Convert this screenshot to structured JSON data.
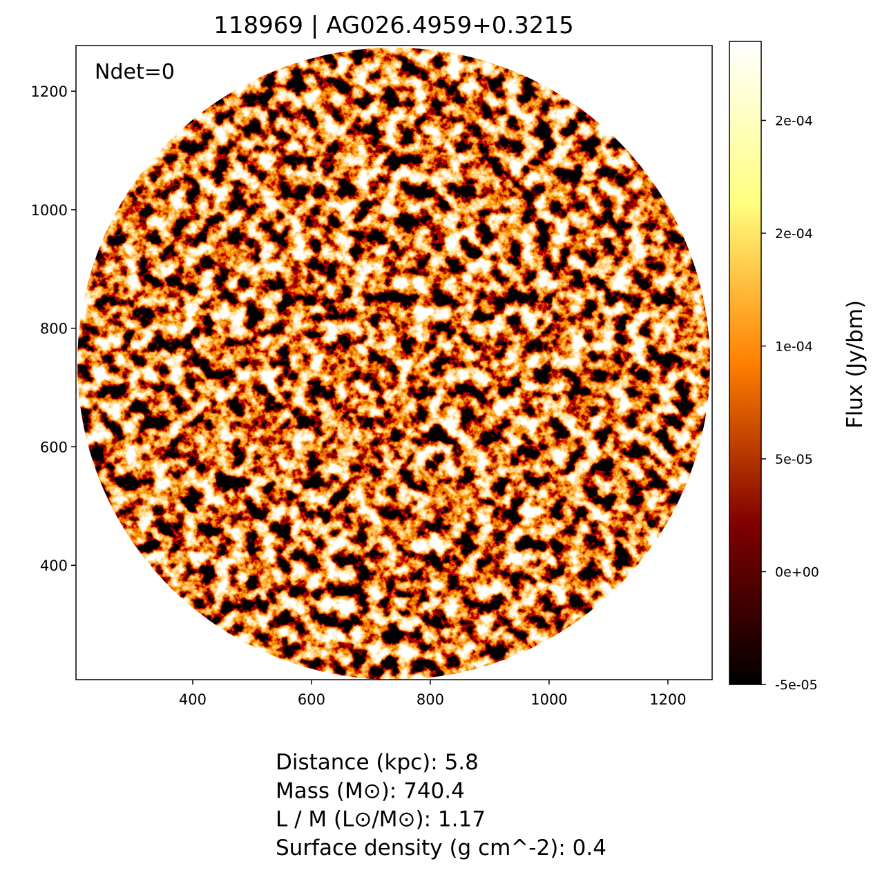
{
  "chart_data": {
    "type": "image",
    "title": "118969 | AG026.4959+0.3215",
    "annotation": "Ndet=0",
    "xlim": [
      203.5,
      1274.5
    ],
    "xticks": [
      400,
      600,
      800,
      1000,
      1200
    ],
    "ylim": [
      207,
      1277
    ],
    "yticks": [
      400,
      600,
      800,
      1000,
      1200
    ],
    "colorbar": {
      "label": "Flux (Jy/bm)",
      "clim": [
        -5e-05,
        0.000235
      ],
      "colors": [
        "#000000",
        "#800000",
        "#ff8000",
        "#ffff80",
        "#ffffff"
      ],
      "ticks": [
        {
          "value": -5e-05,
          "label": "-5e-05"
        },
        {
          "value": 0,
          "label": "0e+00"
        },
        {
          "value": 5e-05,
          "label": "5e-05"
        },
        {
          "value": 0.0001,
          "label": "1e-04"
        },
        {
          "value": 0.00015,
          "label": "2e-04"
        },
        {
          "value": 0.0002,
          "label": "2e-04"
        }
      ]
    },
    "info": [
      "Distance (kpc): 5.8",
      "Mass (M⊙): 740.4",
      "L / M (L⊙/M⊙): 1.17",
      "Surface density (g cm^-2): 0.4"
    ]
  }
}
